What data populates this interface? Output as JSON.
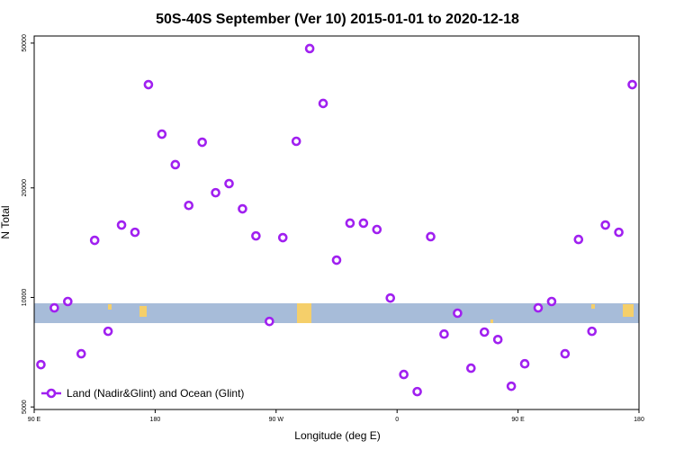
{
  "chart_data": {
    "type": "scatter",
    "title": "50S-40S September (Ver 10)   2015-01-01 to 2020-12-18",
    "x_label": "Longitude (deg E)",
    "y_label": "N Total",
    "log_y": true,
    "xlim": [
      90,
      540
    ],
    "xticks": [
      {
        "value": 90,
        "label": "90 E"
      },
      180,
      {
        "value": 270,
        "label": "90 W"
      },
      {
        "value": 360,
        "label": "0"
      },
      {
        "value": 450,
        "label": "90 E"
      },
      {
        "value": 540,
        "label": "180"
      }
    ],
    "ylim": [
      4920,
      52300
    ],
    "yticks": [
      5000,
      10000,
      20000,
      50000
    ],
    "legend": "bottom-left",
    "series": [
      {
        "name": "Land (Nadir&Glint) and Ocean (Glint)",
        "color": "#a020f0",
        "x": [
          95,
          105,
          115,
          125,
          135,
          145,
          155,
          165,
          175,
          185,
          195,
          205,
          215,
          225,
          235,
          245,
          255,
          265,
          275,
          285,
          295,
          305,
          315,
          325,
          335,
          345,
          355,
          365,
          375,
          385,
          395,
          405,
          415,
          425,
          435,
          445,
          455,
          465,
          475,
          485,
          495,
          505,
          515,
          525,
          535
        ],
        "values": [
          6535,
          9360,
          9745,
          7000,
          14350,
          8070,
          15810,
          15100,
          38450,
          28100,
          23170,
          17900,
          26700,
          19400,
          20550,
          17520,
          14760,
          8590,
          14600,
          26860,
          48300,
          34130,
          12660,
          16000,
          16000,
          15370,
          9960,
          6140,
          5510,
          14690,
          7930,
          9050,
          6390,
          8030,
          7660,
          5700,
          6570,
          9360,
          9745,
          7000,
          14430,
          8070,
          15810,
          15100,
          38450
        ]
      }
    ]
  }
}
